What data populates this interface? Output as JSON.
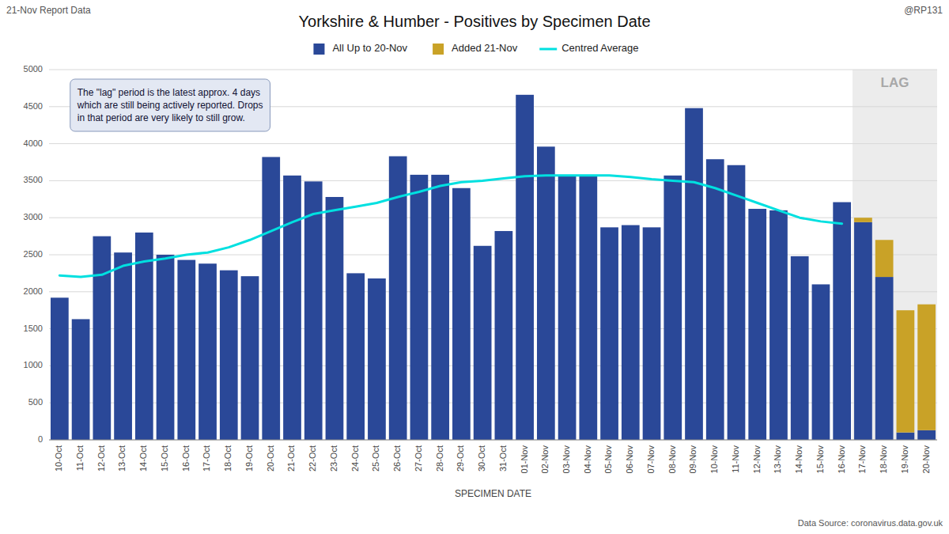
{
  "chart_data": {
    "type": "bar",
    "title": "Yorkshire & Humber - Positives by Specimen Date",
    "x_label": "SPECIMEN DATE",
    "annotations": [
      {
        "text": "21-Nov Report Data"
      },
      {
        "text": "@RP131"
      },
      {
        "text": "Data Source: coronavirus.data.gov.uk"
      },
      {
        "text": "The \"lag\" period is the latest approx. 4 days\nwhich are still being actively reported. Drops\nin that period are very likely to still grow."
      },
      {
        "text": "LAG",
        "span": [
          "17-Nov",
          "20-Nov"
        ]
      }
    ],
    "categories": [
      "10-Oct",
      "11-Oct",
      "12-Oct",
      "13-Oct",
      "14-Oct",
      "15-Oct",
      "16-Oct",
      "17-Oct",
      "18-Oct",
      "19-Oct",
      "20-Oct",
      "21-Oct",
      "22-Oct",
      "23-Oct",
      "24-Oct",
      "25-Oct",
      "26-Oct",
      "27-Oct",
      "28-Oct",
      "29-Oct",
      "30-Oct",
      "31-Oct",
      "01-Nov",
      "02-Nov",
      "03-Nov",
      "04-Nov",
      "05-Nov",
      "06-Nov",
      "07-Nov",
      "08-Nov",
      "09-Nov",
      "10-Nov",
      "11-Nov",
      "12-Nov",
      "13-Nov",
      "14-Nov",
      "15-Nov",
      "16-Nov",
      "17-Nov",
      "18-Nov",
      "19-Nov",
      "20-Nov"
    ],
    "series": [
      {
        "name": "All Up to 20-Nov",
        "type": "bar",
        "color": "#2a4898",
        "values": [
          1920,
          1630,
          2750,
          2530,
          2800,
          2500,
          2430,
          2380,
          2290,
          2210,
          3820,
          3570,
          3490,
          3280,
          2250,
          2180,
          3830,
          3580,
          3580,
          3400,
          2620,
          2820,
          4660,
          3960,
          3570,
          3570,
          2870,
          2900,
          2870,
          3570,
          4480,
          3790,
          3710,
          3120,
          3100,
          2480,
          2100,
          3210,
          2940,
          2200,
          100,
          130
        ]
      },
      {
        "name": "Added 21-Nov",
        "type": "bar",
        "color": "#c9a227",
        "values": [
          0,
          0,
          0,
          0,
          0,
          0,
          0,
          0,
          0,
          0,
          0,
          0,
          0,
          0,
          0,
          0,
          0,
          0,
          0,
          0,
          0,
          0,
          0,
          0,
          0,
          0,
          0,
          0,
          0,
          0,
          0,
          0,
          0,
          0,
          0,
          0,
          0,
          0,
          60,
          500,
          1650,
          1700
        ]
      },
      {
        "name": "Centred Average",
        "type": "line",
        "color": "#00e0e0",
        "values": [
          2220,
          2200,
          2230,
          2350,
          2410,
          2450,
          2500,
          2530,
          2600,
          2700,
          2820,
          2940,
          3050,
          3100,
          3150,
          3200,
          3280,
          3350,
          3430,
          3480,
          3500,
          3530,
          3560,
          3570,
          3570,
          3570,
          3570,
          3550,
          3520,
          3500,
          3480,
          3400,
          3300,
          3200,
          3100,
          3000,
          2950,
          2920,
          null,
          null,
          null,
          null
        ]
      }
    ],
    "stacked": true,
    "ylim": [
      0,
      5000
    ],
    "yticks": [
      0,
      500,
      1000,
      1500,
      2000,
      2500,
      3000,
      3500,
      4000,
      4500,
      5000
    ],
    "grid": true,
    "legend": "top"
  }
}
